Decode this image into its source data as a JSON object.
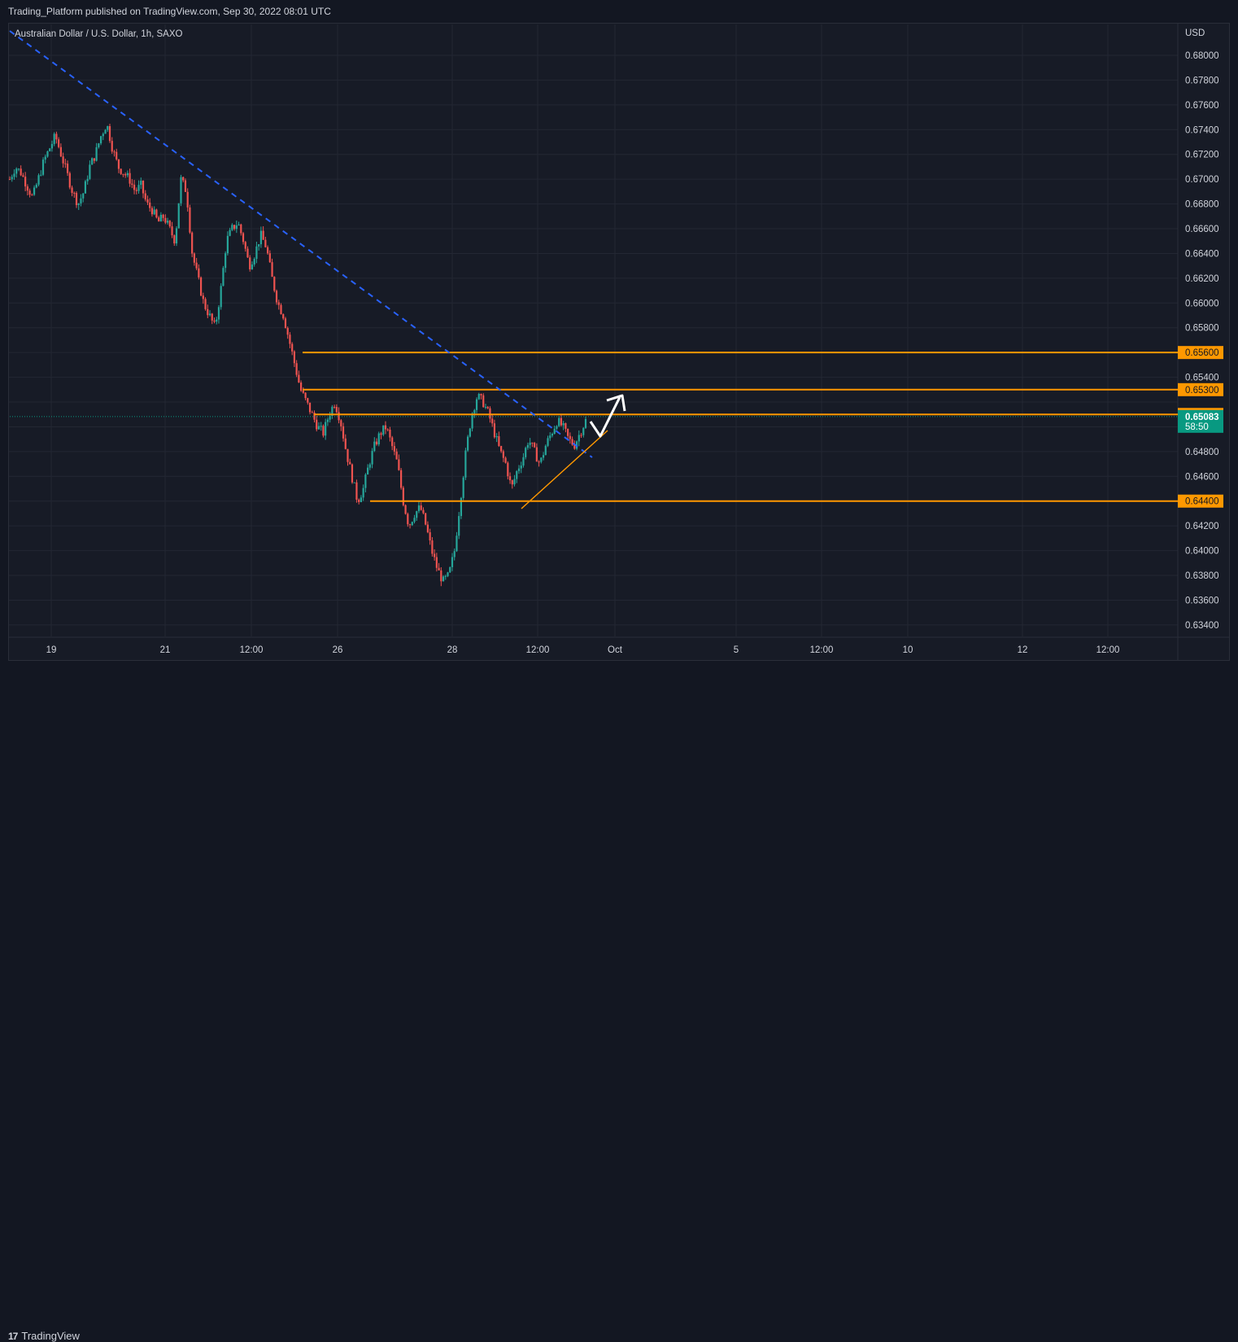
{
  "header": {
    "published_text": "Trading_Platform published on TradingView.com, Sep 30, 2022 08:01 UTC"
  },
  "chart_title": "Australian Dollar / U.S. Dollar, 1h, SAXO",
  "footer": {
    "brand": "TradingView",
    "logo_mark": "17"
  },
  "colors": {
    "background": "#171b26",
    "up_candle": "#26a69a",
    "down_candle": "#ef5350",
    "level_line": "#ff9800",
    "trendline_dashed": "#2962ff",
    "current_price_bg": "#089981",
    "grid": "#232733"
  },
  "chart_data": {
    "type": "candlestick",
    "title": "Australian Dollar / U.S. Dollar, 1h, SAXO",
    "currency": "USD",
    "ylim": [
      0.633,
      0.682
    ],
    "y_ticks": [
      "0.68000",
      "0.67800",
      "0.67600",
      "0.67400",
      "0.67200",
      "0.67000",
      "0.66800",
      "0.66600",
      "0.66400",
      "0.66200",
      "0.66000",
      "0.65800",
      "0.65400",
      "0.64800",
      "0.64600",
      "0.64200",
      "0.64000",
      "0.63800",
      "0.63600",
      "0.63400"
    ],
    "x_ticks": [
      "19",
      "21",
      "12:00",
      "26",
      "28",
      "12:00",
      "Oct",
      "5",
      "12:00",
      "10",
      "12",
      "12:00"
    ],
    "horizontal_levels": [
      {
        "value": 0.656,
        "label": "0.65600"
      },
      {
        "value": 0.653,
        "label": "0.65300"
      },
      {
        "value": 0.651,
        "label": "0.65100"
      },
      {
        "value": 0.644,
        "label": "0.64400"
      }
    ],
    "current_price": {
      "value": 0.65083,
      "label": "0.65083",
      "countdown": "58:50"
    },
    "price_path": [
      [
        0.67,
        0.671
      ],
      [
        0.6705,
        0.6695
      ],
      [
        0.6685,
        0.67
      ],
      [
        0.6715,
        0.6725
      ],
      [
        0.6735,
        0.672
      ],
      [
        0.6705,
        0.669
      ],
      [
        0.668,
        0.669
      ],
      [
        0.671,
        0.672
      ],
      [
        0.6735,
        0.6745
      ],
      [
        0.6725,
        0.671
      ],
      [
        0.6705,
        0.67
      ],
      [
        0.669,
        0.6695
      ],
      [
        0.668,
        0.6675
      ],
      [
        0.6665,
        0.667
      ],
      [
        0.666,
        0.665
      ],
      [
        0.67,
        0.669
      ],
      [
        0.664,
        0.662
      ],
      [
        0.66,
        0.659
      ],
      [
        0.658,
        0.661
      ],
      [
        0.665,
        0.666
      ],
      [
        0.6665,
        0.665
      ],
      [
        0.663,
        0.664
      ],
      [
        0.6655,
        0.6645
      ],
      [
        0.662,
        0.66
      ],
      [
        0.659,
        0.657
      ],
      [
        0.655,
        0.653
      ],
      [
        0.652,
        0.651
      ],
      [
        0.65,
        0.6495
      ],
      [
        0.651,
        0.652
      ],
      [
        0.6505,
        0.648
      ],
      [
        0.646,
        0.644
      ],
      [
        0.645,
        0.647
      ],
      [
        0.6485,
        0.6495
      ],
      [
        0.65,
        0.6485
      ],
      [
        0.647,
        0.644
      ],
      [
        0.642,
        0.643
      ],
      [
        0.6435,
        0.642
      ],
      [
        0.64,
        0.6385
      ],
      [
        0.6375,
        0.638
      ],
      [
        0.64,
        0.644
      ],
      [
        0.648,
        0.651
      ],
      [
        0.6525,
        0.652
      ],
      [
        0.651,
        0.6495
      ],
      [
        0.648,
        0.647
      ],
      [
        0.645,
        0.6465
      ],
      [
        0.6475,
        0.649
      ],
      [
        0.648,
        0.647
      ],
      [
        0.6485,
        0.6495
      ],
      [
        0.6505,
        0.65
      ],
      [
        0.649,
        0.6485
      ],
      [
        0.6495,
        0.6505
      ]
    ],
    "dashed_trendline": {
      "from": [
        "Sep 18",
        0.68
      ],
      "to": [
        "Sep 30",
        0.6475
      ]
    },
    "rising_trendline": {
      "from": [
        "Sep 29",
        0.6435
      ],
      "to": [
        "Sep 30",
        0.649
      ]
    }
  }
}
